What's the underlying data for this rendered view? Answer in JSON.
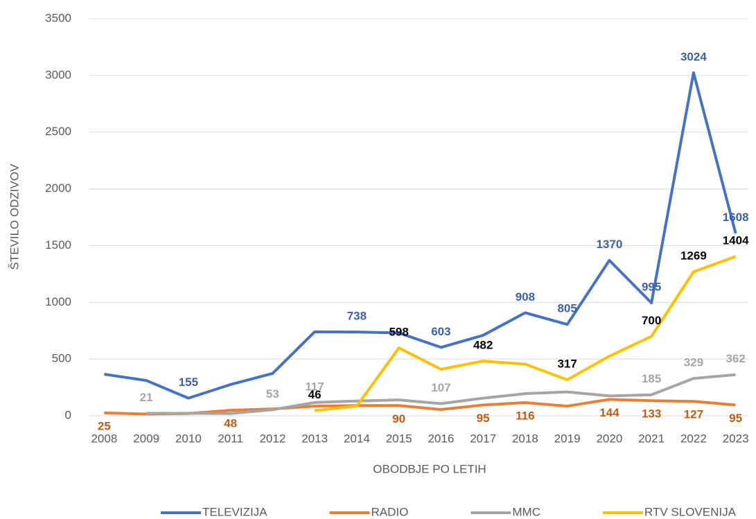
{
  "chart_data": {
    "type": "line",
    "xlabel": "OBODBJE PO LETIH",
    "ylabel": "ŠTEVILO ODZIVOV",
    "categories": [
      "2008",
      "2009",
      "2010",
      "2011",
      "2012",
      "2013",
      "2014",
      "2015",
      "2016",
      "2017",
      "2018",
      "2019",
      "2020",
      "2021",
      "2022",
      "2023"
    ],
    "ylim": [
      0,
      3500
    ],
    "yticks": [
      0,
      500,
      1000,
      1500,
      2000,
      2500,
      3000,
      3500
    ],
    "grid": true,
    "legend": "bottom",
    "series": [
      {
        "name": "TELEVIZIJA",
        "color": "#4472c4",
        "label_color": "#3b5fa8",
        "values": [
          366,
          311,
          155,
          275,
          373,
          740,
          738,
          730,
          603,
          709,
          908,
          805,
          1370,
          995,
          3024,
          1608
        ],
        "value_labels": [
          null,
          null,
          "155",
          null,
          null,
          null,
          "738",
          null,
          "603",
          null,
          "908",
          "805",
          "1370",
          "995",
          "3024",
          "1608"
        ]
      },
      {
        "name": "RADIO",
        "color": "#ed7d31",
        "label_color": "#c55a11",
        "values": [
          25,
          15,
          20,
          48,
          60,
          85,
          90,
          90,
          55,
          95,
          116,
          85,
          144,
          133,
          127,
          95
        ],
        "value_labels": [
          "25",
          null,
          null,
          "48",
          null,
          null,
          null,
          "90",
          null,
          "95",
          "116",
          null,
          "144",
          "133",
          "127",
          "95"
        ]
      },
      {
        "name": "MMC",
        "color": "#a5a5a5",
        "label_color": "#a5a5a5",
        "values": [
          null,
          21,
          22,
          20,
          53,
          117,
          130,
          140,
          107,
          155,
          195,
          210,
          175,
          185,
          329,
          362
        ],
        "value_labels": [
          null,
          "21",
          null,
          null,
          "53",
          "117",
          null,
          null,
          "107",
          null,
          null,
          null,
          null,
          "185",
          "329",
          "362"
        ]
      },
      {
        "name": "RTV SLOVENIJA",
        "color": "#ffc000",
        "label_color": "#000000",
        "values": [
          null,
          null,
          null,
          null,
          null,
          46,
          85,
          598,
          410,
          482,
          455,
          317,
          525,
          700,
          1269,
          1404
        ],
        "value_labels": [
          null,
          null,
          null,
          null,
          null,
          "46",
          null,
          "598",
          null,
          "482",
          null,
          "317",
          null,
          "700",
          "1269",
          "1404"
        ]
      }
    ]
  }
}
